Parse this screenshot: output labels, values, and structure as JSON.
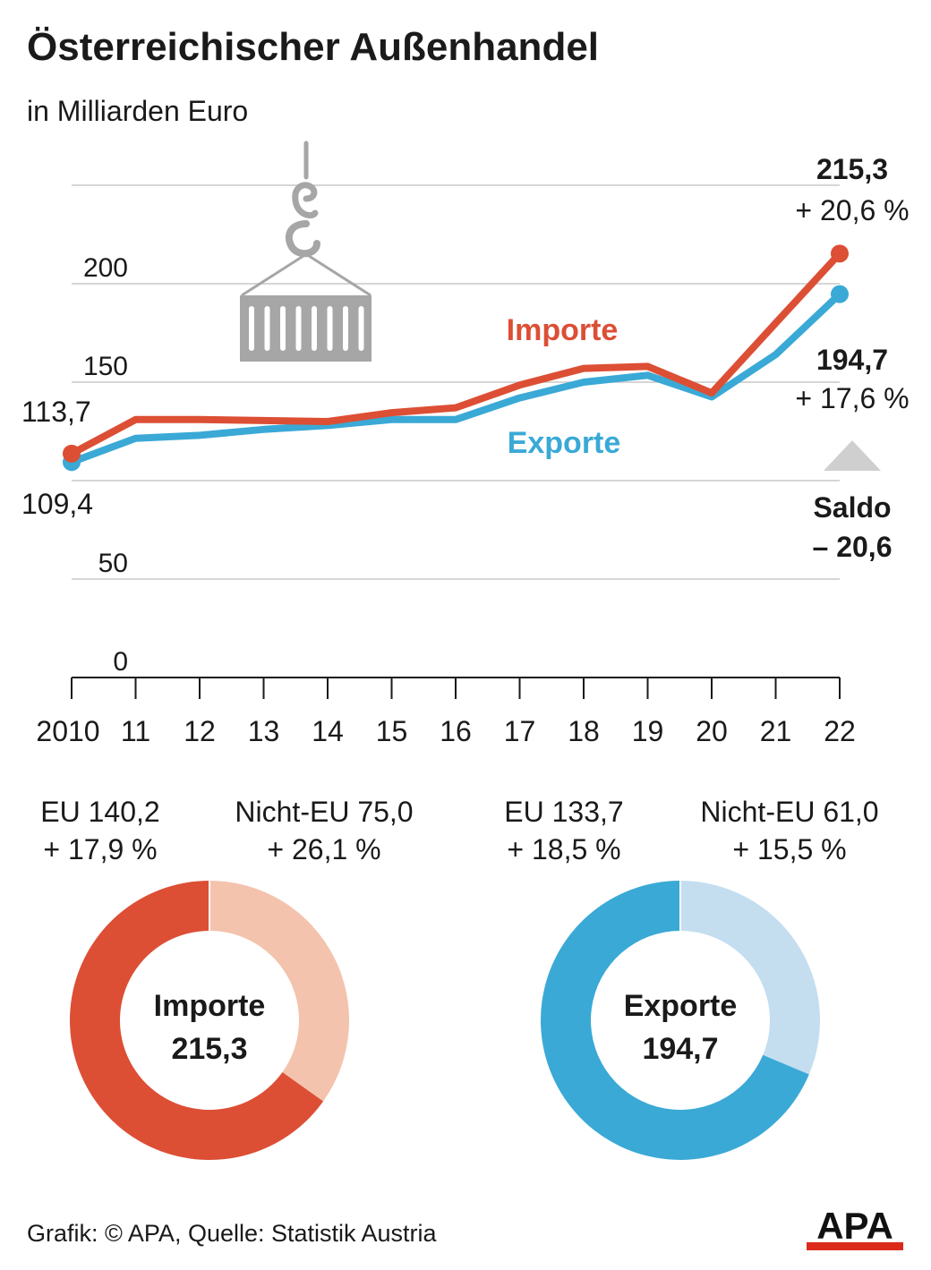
{
  "header": {
    "title": "Österreichischer Außenhandel",
    "subtitle": "in Milliarden Euro"
  },
  "colors": {
    "imports": "#dc4f35",
    "exports": "#3aa9d6",
    "imports_light": "#f4c3ad",
    "exports_light": "#c4def0",
    "grid": "#c8c8c8",
    "illustration": "#a6a6a6"
  },
  "illustration": {
    "icon": "container-crane-hook-icon"
  },
  "chart_data": [
    {
      "type": "line",
      "x": [
        "2010",
        "11",
        "12",
        "13",
        "14",
        "15",
        "16",
        "17",
        "18",
        "19",
        "20",
        "21",
        "22"
      ],
      "y_ticks": [
        "0",
        "50",
        "150",
        "200"
      ],
      "ylim": [
        0,
        240
      ],
      "grid": true,
      "series": [
        {
          "name": "Importe",
          "values": [
            113.7,
            131.0,
            131.0,
            130.5,
            130.0,
            134.5,
            137.0,
            148.5,
            157.0,
            158.0,
            144.5,
            180.0,
            215.3
          ],
          "start_label": "113,7",
          "end_label": "215,3",
          "end_change": "+ 20,6 %"
        },
        {
          "name": "Exporte",
          "values": [
            109.4,
            121.5,
            123.0,
            126.0,
            128.0,
            131.0,
            131.0,
            142.0,
            150.0,
            153.5,
            142.5,
            164.0,
            194.7
          ],
          "start_label": "109,4",
          "end_label": "194,7",
          "end_change": "+ 17,6 %"
        }
      ],
      "saldo": {
        "label": "Saldo",
        "value": "– 20,6"
      }
    },
    {
      "type": "pie",
      "title": "Importe",
      "total": "215,3",
      "slices": [
        {
          "label": "EU 140,2",
          "change": "+ 17,9 %",
          "value": 140.2
        },
        {
          "label": "Nicht-EU 75,0",
          "change": "+ 26,1 %",
          "value": 75.0
        }
      ]
    },
    {
      "type": "pie",
      "title": "Exporte",
      "total": "194,7",
      "slices": [
        {
          "label": "EU 133,7",
          "change": "+ 18,5 %",
          "value": 133.7
        },
        {
          "label": "Nicht-EU 61,0",
          "change": "+ 15,5 %",
          "value": 61.0
        }
      ]
    }
  ],
  "footer": {
    "credit": "Grafik: © APA, Quelle: Statistik Austria"
  },
  "logo": {
    "text": "APA"
  }
}
